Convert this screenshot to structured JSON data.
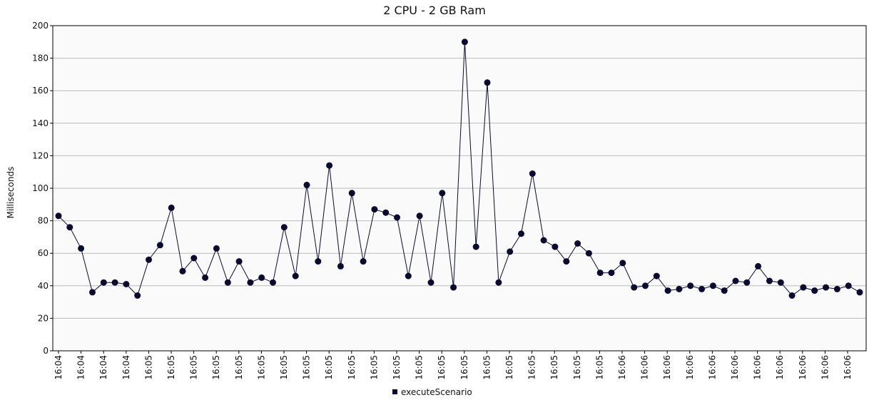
{
  "chart_data": {
    "type": "line",
    "title": "2 CPU - 2 GB Ram",
    "xlabel": "",
    "ylabel": "Milliseconds",
    "ylim": [
      0,
      200
    ],
    "yticks": [
      0,
      20,
      40,
      60,
      80,
      100,
      120,
      140,
      160,
      180,
      200
    ],
    "grid": true,
    "legend_position": "bottom",
    "colors": {
      "series": "#0a0a2e",
      "grid": "#bbbbbb",
      "plot_bg": "#fafafa",
      "axis": "#000000"
    },
    "x_tick_labels": [
      "16:04",
      "16:04",
      "16:04",
      "16:04",
      "16:05",
      "16:05",
      "16:05",
      "16:05",
      "16:05",
      "16:05",
      "16:05",
      "16:05",
      "16:05",
      "16:05",
      "16:05",
      "16:05",
      "16:05",
      "16:05",
      "16:05",
      "16:05",
      "16:05",
      "16:05",
      "16:05",
      "16:05",
      "16:05",
      "16:06",
      "16:06",
      "16:06",
      "16:06",
      "16:06",
      "16:06",
      "16:06",
      "16:06",
      "16:06",
      "16:06",
      "16:06"
    ],
    "series": [
      {
        "name": "executeScenario",
        "values": [
          83,
          76,
          63,
          36,
          42,
          42,
          41,
          34,
          56,
          65,
          88,
          49,
          57,
          45,
          63,
          42,
          55,
          42,
          45,
          42,
          76,
          46,
          102,
          55,
          114,
          52,
          97,
          55,
          87,
          85,
          82,
          46,
          83,
          42,
          97,
          39,
          190,
          64,
          165,
          42,
          61,
          72,
          109,
          68,
          64,
          55,
          66,
          60,
          48,
          48,
          54,
          39,
          40,
          46,
          37,
          38,
          40,
          38,
          40,
          37,
          43,
          42,
          52,
          43,
          42,
          34,
          39,
          37,
          39,
          38,
          40,
          36
        ]
      }
    ]
  }
}
